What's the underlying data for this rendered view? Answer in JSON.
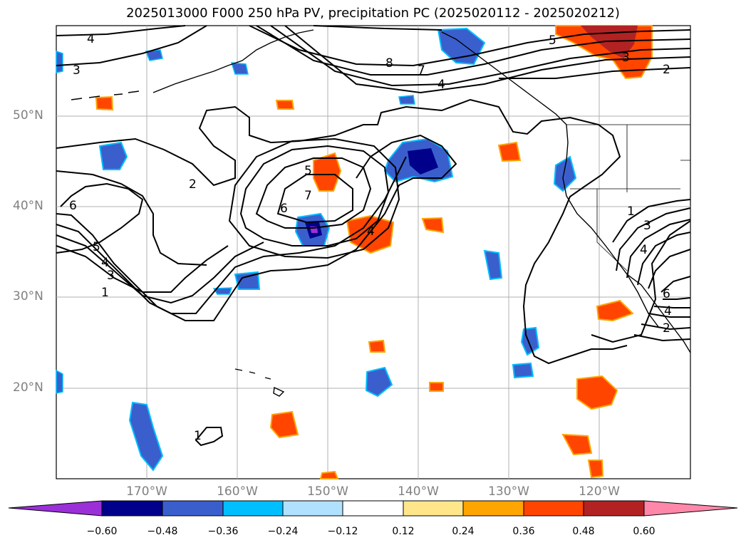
{
  "title": "2025013000 F000 250 hPa PV, precipitation PC (2025020112 - 2025020212)",
  "map": {
    "lat_labels": [
      "20°N",
      "30°N",
      "40°N",
      "50°N"
    ],
    "lon_labels": [
      "170°W",
      "160°W",
      "150°W",
      "140°W",
      "130°W",
      "120°W"
    ],
    "contour_labels": [
      "4",
      "3",
      "8",
      "7",
      "4",
      "5",
      "3",
      "2",
      "2",
      "5",
      "7",
      "6",
      "6",
      "5",
      "4",
      "3",
      "1",
      "4",
      "1",
      "3",
      "4",
      "6",
      "4",
      "2",
      "1"
    ],
    "colors": {
      "contour": "#000000",
      "grid": "#b0b0b0",
      "coast": "#000000"
    }
  },
  "colorbar": {
    "tick_labels": [
      "−0.60",
      "−0.48",
      "−0.36",
      "−0.24",
      "−0.12",
      "0.12",
      "0.24",
      "0.36",
      "0.48",
      "0.60"
    ],
    "colors": [
      "#9b30d9",
      "#00008b",
      "#3a5fcd",
      "#00bfff",
      "#b0e2ff",
      "#ffffff",
      "#ffe68a",
      "#ffa500",
      "#ff4500",
      "#b22222",
      "#ff88aa"
    ]
  }
}
